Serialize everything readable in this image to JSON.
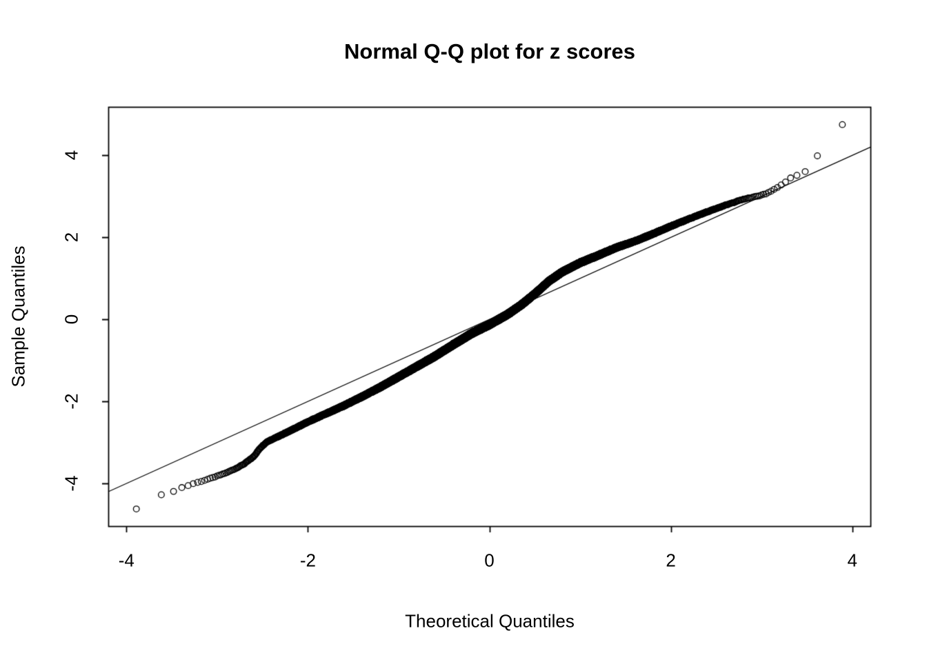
{
  "chart_data": {
    "type": "scatter",
    "subtype": "normal-qq-plot",
    "title": "Normal Q-Q plot for z scores",
    "xlabel": "Theoretical Quantiles",
    "ylabel": "Sample Quantiles",
    "xlim": [
      -4.2,
      4.2
    ],
    "ylim": [
      -5.04,
      5.18
    ],
    "x_ticks": [
      -4,
      -2,
      0,
      2,
      4
    ],
    "y_ticks": [
      -4,
      -2,
      0,
      2,
      4
    ],
    "grid": false,
    "legend": "none",
    "point_style": "open-circle",
    "reference_line": {
      "slope": 1,
      "intercept": 0,
      "x_start": -4.2,
      "x_end": 4.2
    },
    "n_points_estimate": 10000,
    "curve_anchors": [
      [
        -3.89,
        -4.62
      ],
      [
        -3.62,
        -4.28
      ],
      [
        -3.48,
        -4.19
      ],
      [
        -3.39,
        -4.1
      ],
      [
        -3.32,
        -4.05
      ],
      [
        -3.26,
        -4.0
      ],
      [
        -3.21,
        -3.97
      ],
      [
        -3.16,
        -3.94
      ],
      [
        -3.11,
        -3.9
      ],
      [
        -3.05,
        -3.86
      ],
      [
        -3.0,
        -3.82
      ],
      [
        -2.9,
        -3.74
      ],
      [
        -2.8,
        -3.64
      ],
      [
        -2.7,
        -3.52
      ],
      [
        -2.6,
        -3.35
      ],
      [
        -2.52,
        -3.12
      ],
      [
        -2.45,
        -2.98
      ],
      [
        -2.35,
        -2.88
      ],
      [
        -2.2,
        -2.72
      ],
      [
        -2.0,
        -2.5
      ],
      [
        -1.8,
        -2.3
      ],
      [
        -1.6,
        -2.1
      ],
      [
        -1.4,
        -1.88
      ],
      [
        -1.2,
        -1.65
      ],
      [
        -1.0,
        -1.4
      ],
      [
        -0.8,
        -1.15
      ],
      [
        -0.6,
        -0.9
      ],
      [
        -0.4,
        -0.62
      ],
      [
        -0.2,
        -0.35
      ],
      [
        0.0,
        -0.13
      ],
      [
        0.2,
        0.12
      ],
      [
        0.35,
        0.35
      ],
      [
        0.5,
        0.62
      ],
      [
        0.65,
        0.92
      ],
      [
        0.8,
        1.15
      ],
      [
        1.0,
        1.38
      ],
      [
        1.2,
        1.56
      ],
      [
        1.4,
        1.75
      ],
      [
        1.6,
        1.9
      ],
      [
        1.8,
        2.08
      ],
      [
        2.0,
        2.27
      ],
      [
        2.2,
        2.45
      ],
      [
        2.4,
        2.62
      ],
      [
        2.6,
        2.78
      ],
      [
        2.8,
        2.93
      ],
      [
        2.95,
        3.0
      ],
      [
        3.05,
        3.06
      ],
      [
        3.15,
        3.18
      ],
      [
        3.25,
        3.32
      ],
      [
        3.32,
        3.45
      ],
      [
        3.48,
        3.6
      ],
      [
        3.62,
        4.0
      ],
      [
        3.89,
        4.75
      ]
    ],
    "extreme_points": {
      "min": [
        -3.9,
        -4.6
      ],
      "max": [
        3.9,
        4.75
      ]
    }
  },
  "colors": {
    "foreground": "#000000",
    "background": "#ffffff"
  }
}
